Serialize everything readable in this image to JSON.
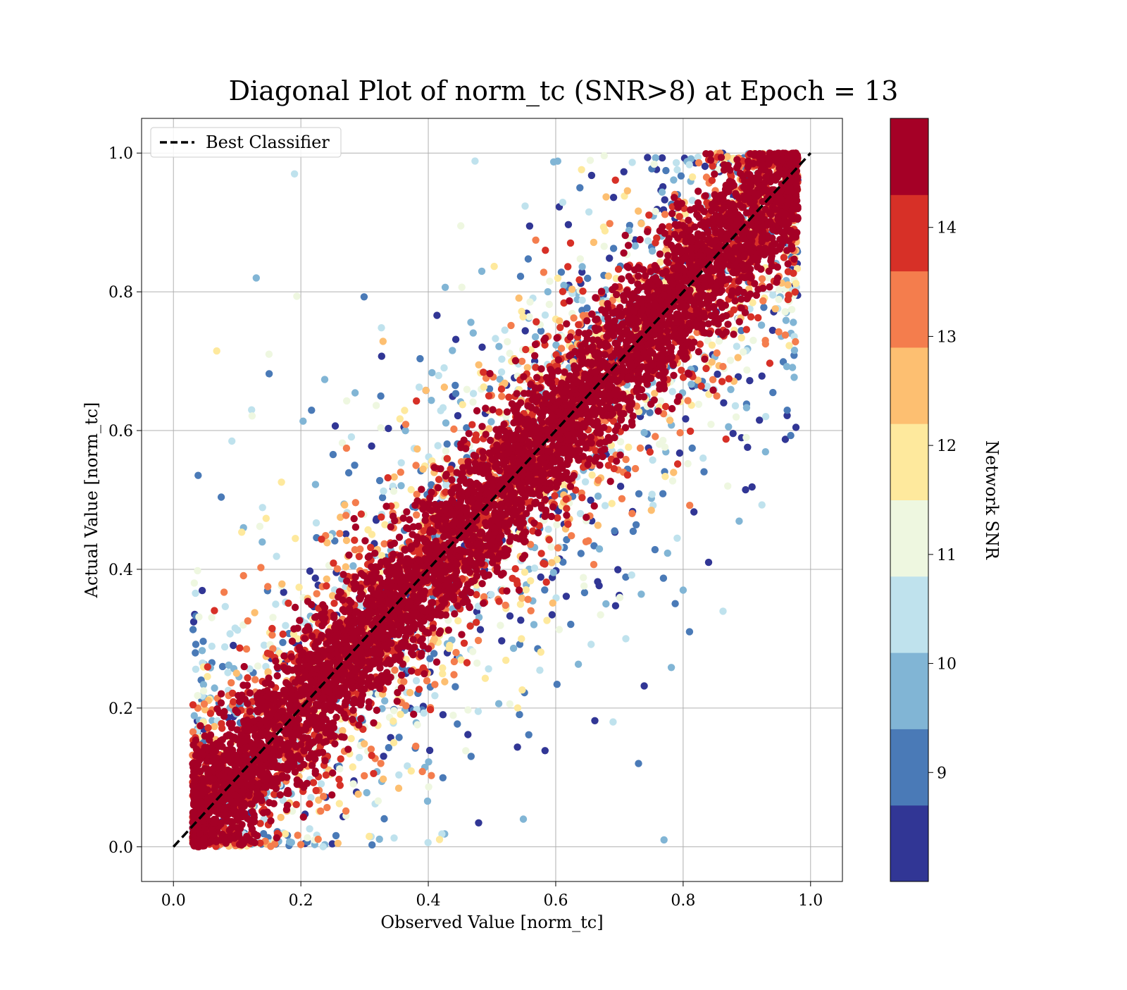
{
  "chart_data": {
    "type": "scatter",
    "title": "Diagonal Plot of norm_tc (SNR>8) at Epoch = 13",
    "xlabel": "Observed Value [norm_tc]",
    "ylabel": "Actual Value [norm_tc]",
    "xlim": [
      -0.05,
      1.05
    ],
    "ylim": [
      -0.05,
      1.05
    ],
    "x_ticks": [
      "0.0",
      "0.2",
      "0.4",
      "0.6",
      "0.8",
      "1.0"
    ],
    "y_ticks": [
      "0.0",
      "0.2",
      "0.4",
      "0.6",
      "0.8",
      "1.0"
    ],
    "grid": true,
    "legend": {
      "placement": "top-left",
      "entries": [
        {
          "label": "Best Classifier",
          "style": "dashed",
          "color": "#000000"
        }
      ]
    },
    "reference_line": {
      "from": [
        0,
        0
      ],
      "to": [
        1,
        1
      ]
    },
    "colorbar": {
      "label": "Network SNR",
      "range": [
        8,
        15
      ],
      "ticks": [
        "9",
        "10",
        "11",
        "12",
        "13",
        "14"
      ],
      "colors": [
        "#313695",
        "#4a7ab7",
        "#81b5d5",
        "#bfe2ed",
        "#eef7e0",
        "#fee99d",
        "#fdbf71",
        "#f47d4d",
        "#d73027",
        "#a50026"
      ]
    },
    "scatter_summary": {
      "point_count_approx": 30000,
      "x_range": [
        0.03,
        0.98
      ],
      "y_range": [
        0.0,
        1.0
      ],
      "band": "points lie in a band centered on y = x (half-width about 0.1), high-SNR points (>14) fill the core, low-SNR points (8-11) scatter farther from the diagonal",
      "outliers": [
        [
          0.13,
          0.82
        ],
        [
          0.15,
          0.71
        ],
        [
          0.19,
          0.97
        ],
        [
          0.11,
          0.46
        ],
        [
          0.87,
          0.52
        ],
        [
          0.84,
          0.41
        ],
        [
          0.8,
          0.37
        ],
        [
          0.81,
          0.31
        ],
        [
          0.69,
          0.18
        ],
        [
          0.71,
          0.3
        ],
        [
          0.77,
          0.01
        ],
        [
          0.73,
          0.12
        ]
      ]
    }
  }
}
